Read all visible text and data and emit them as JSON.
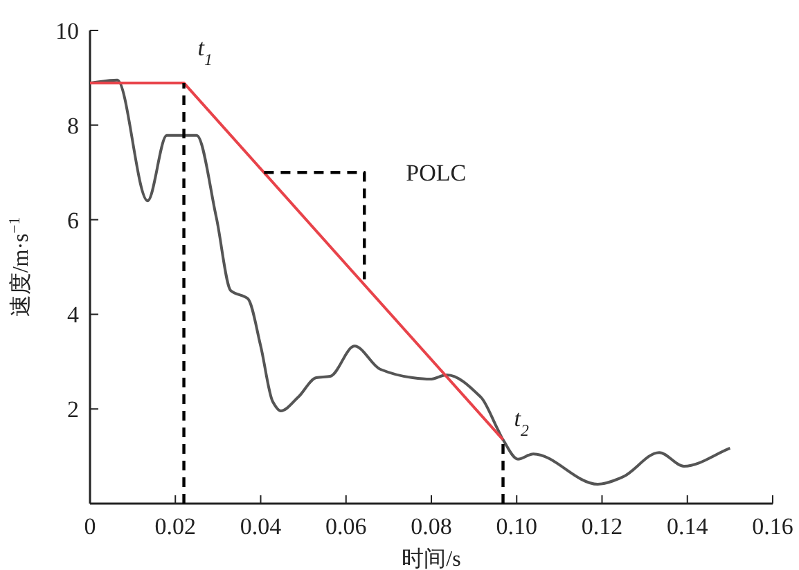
{
  "chart_data": {
    "type": "line",
    "xlabel": "时间/s",
    "ylabel": "速度/m·s$^{−1}$",
    "xlim": [
      0,
      0.16
    ],
    "ylim": [
      0,
      10
    ],
    "xticks": [
      0,
      0.02,
      0.04,
      0.06,
      0.08,
      {
        "value": 0.1,
        "label": "0.10"
      },
      0.12,
      0.14,
      0.16
    ],
    "yticks": [
      2,
      4,
      6,
      8,
      10
    ],
    "grid": false,
    "series": [
      {
        "color": "#555555",
        "x": [
          0,
          0.0064,
          0.0135,
          0.018,
          0.025,
          0.0296,
          0.033,
          0.037,
          0.04,
          0.0428,
          0.0447,
          0.0488,
          0.053,
          0.0563,
          0.062,
          0.068,
          0.0756,
          0.0797,
          0.0836,
          0.0916,
          0.0955,
          0.0968,
          0.1003,
          0.1039,
          0.119,
          0.1248,
          0.1334,
          0.1392,
          0.15
        ],
        "values": [
          8.89,
          8.95,
          6.4,
          7.78,
          7.78,
          6.05,
          4.5,
          4.33,
          3.33,
          2.16,
          1.96,
          2.25,
          2.66,
          2.69,
          3.33,
          2.84,
          2.66,
          2.63,
          2.72,
          2.25,
          1.58,
          1.35,
          0.94,
          1.05,
          0.41,
          0.56,
          1.08,
          0.79,
          1.17
        ]
      },
      {
        "color": "#e8434a",
        "x": [
          0,
          0.022,
          0.0968
        ],
        "values": [
          8.89,
          8.89,
          1.35
        ]
      },
      {
        "color": "#000000",
        "line_style": "dashed",
        "x": [
          0.022,
          0.022
        ],
        "values": [
          0,
          8.89
        ]
      },
      {
        "color": "#000000",
        "line_style": "dashed",
        "x": [
          0.0968,
          0.0968
        ],
        "values": [
          0,
          1.35
        ]
      },
      {
        "color": "#000000",
        "line_style": "dashed",
        "x": [
          0.0408,
          0.0643,
          0.0643
        ],
        "values": [
          7.0,
          7.0,
          4.74
        ]
      }
    ],
    "annotations": [
      {
        "text": "t$_{1}$",
        "x": 0.022,
        "y": 8.89
      },
      {
        "text": "t$_{2}$",
        "x": 0.0968,
        "y": 1.35
      },
      {
        "text": "POLC",
        "x": 0.0643,
        "y": 7.0
      }
    ]
  }
}
